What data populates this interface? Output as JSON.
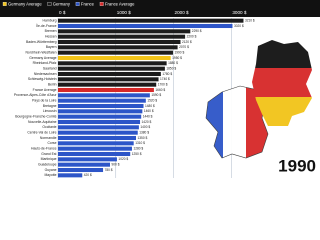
{
  "chart_data": {
    "type": "bar",
    "orientation": "horizontal",
    "year": "1990",
    "legend": [
      {
        "name": "Germany Average",
        "color": "#f2c418"
      },
      {
        "name": "Germany",
        "color": "#1c1c1c"
      },
      {
        "name": "France",
        "color": "#2d55c8"
      },
      {
        "name": "France Average",
        "color": "#d62828"
      }
    ],
    "categories": [
      "Hamburg",
      "Île-de-France",
      "Bremen",
      "Hessen",
      "Baden-Württemberg",
      "Bayern",
      "Nordrhein-Westfalen",
      "Germany Average",
      "Rheinland-Pfalz",
      "Saarland",
      "Niedersachsen",
      "Schleswig-Holstein",
      "Berlin",
      "France Average",
      "Provence-Alpes-Côte d'Azur",
      "Pays de la Loire",
      "Bretagne",
      "Limousin",
      "Bourgogne-Franche-Comté",
      "Nouvelle-Aquitaine",
      "Occitanie",
      "Centre-Val de Loire",
      "Normandie",
      "Corse",
      "Hauts-de-France",
      "Grand Est",
      "Martinique",
      "Guadeloupe",
      "Guyane",
      "Mayotte"
    ],
    "values": [
      3210,
      3020,
      2290,
      2200,
      2120,
      2070,
      1990,
      1950,
      1880,
      1850,
      1780,
      1740,
      1700,
      1660,
      1590,
      1520,
      1480,
      1460,
      1440,
      1420,
      1400,
      1380,
      1350,
      1310,
      1280,
      1250,
      1020,
      900,
      780,
      420
    ],
    "value_labels": [
      "3210 $",
      "3020 $",
      "2290 $",
      "2200 $",
      "2120 $",
      "2070 $",
      "1990 $",
      "1950 $",
      "1880 $",
      "1850 $",
      "1780 $",
      "1740 $",
      "1700 $",
      "1660 $",
      "1590 $",
      "1520 $",
      "1480 $",
      "1460 $",
      "1440 $",
      "1420 $",
      "1400 $",
      "1380 $",
      "1350 $",
      "1310 $",
      "1280 $",
      "1250 $",
      "1020 $",
      "900 $",
      "780 $",
      "420 $"
    ],
    "colors": [
      "#1c1c1c",
      "#2d55c8",
      "#1c1c1c",
      "#1c1c1c",
      "#1c1c1c",
      "#1c1c1c",
      "#1c1c1c",
      "#f2c418",
      "#1c1c1c",
      "#1c1c1c",
      "#1c1c1c",
      "#1c1c1c",
      "#1c1c1c",
      "#d62828",
      "#2d55c8",
      "#2d55c8",
      "#2d55c8",
      "#2d55c8",
      "#2d55c8",
      "#2d55c8",
      "#2d55c8",
      "#2d55c8",
      "#2d55c8",
      "#2d55c8",
      "#2d55c8",
      "#2d55c8",
      "#2d55c8",
      "#2d55c8",
      "#2d55c8",
      "#2d55c8"
    ],
    "xlim": [
      0,
      4500
    ],
    "xticks": [
      {
        "value": 0,
        "label": "0 $"
      },
      {
        "value": 1000,
        "label": "1000 $"
      },
      {
        "value": 2000,
        "label": "2000 $"
      },
      {
        "value": 3000,
        "label": "3000 $"
      }
    ],
    "grid": true
  }
}
